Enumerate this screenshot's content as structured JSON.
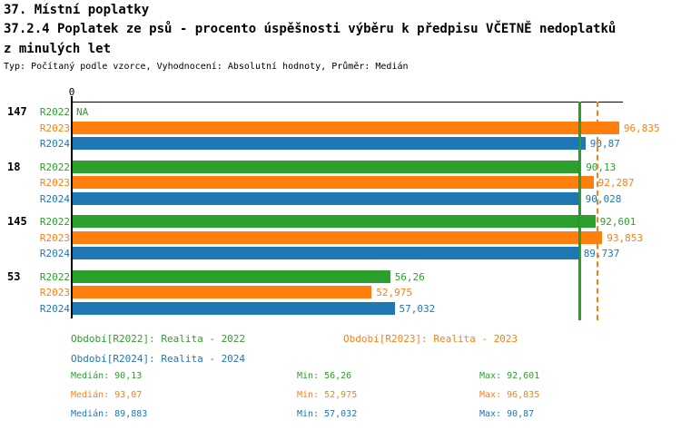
{
  "header": {
    "title_line1": "37. Místní poplatky",
    "title_line2": "37.2.4 Poplatek ze psů - procento úspěšnosti výběru k předpisu VČETNĚ nedoplatků",
    "title_line3": "z minulých let",
    "meta_line": "Typ: Počítaný podle vzorce, Vyhodnocení: Absolutní hodnoty, Průměr: Medián"
  },
  "colors": {
    "series": {
      "R2022": "#2ca02c",
      "R2023": "#ff7f0e",
      "R2024": "#1f77b4"
    },
    "axis": "#000000"
  },
  "chart_data": {
    "type": "bar",
    "orientation": "horizontal",
    "title": "37.2.4 Poplatek ze psů - procento úspěšnosti výběru k předpisu VČETNĚ nedoplatků z minulých let",
    "axis": {
      "origin_label": "0",
      "max": 97.5
    },
    "series_labels": [
      "R2022",
      "R2023",
      "R2024"
    ],
    "groups": [
      {
        "label": "147",
        "bars": [
          {
            "series": "R2022",
            "value": null,
            "label": "NA"
          },
          {
            "series": "R2023",
            "value": 96.835,
            "label": "96,835"
          },
          {
            "series": "R2024",
            "value": 90.87,
            "label": "90,87"
          }
        ]
      },
      {
        "label": "18",
        "bars": [
          {
            "series": "R2022",
            "value": 90.13,
            "label": "90,13"
          },
          {
            "series": "R2023",
            "value": 92.287,
            "label": "92,287"
          },
          {
            "series": "R2024",
            "value": 90.028,
            "label": "90,028"
          }
        ]
      },
      {
        "label": "145",
        "bars": [
          {
            "series": "R2022",
            "value": 92.601,
            "label": "92,601"
          },
          {
            "series": "R2023",
            "value": 93.853,
            "label": "93,853"
          },
          {
            "series": "R2024",
            "value": 89.737,
            "label": "89,737"
          }
        ]
      },
      {
        "label": "53",
        "bars": [
          {
            "series": "R2022",
            "value": 56.26,
            "label": "56,26"
          },
          {
            "series": "R2023",
            "value": 52.975,
            "label": "52,975"
          },
          {
            "series": "R2024",
            "value": 57.032,
            "label": "57,032"
          }
        ]
      }
    ],
    "median_lines": [
      {
        "series": "R2024",
        "value": 89.883,
        "style": "solid"
      },
      {
        "series": "R2022",
        "value": 90.13,
        "style": "solid"
      },
      {
        "series": "R2023",
        "value": 93.07,
        "style": "dashed"
      }
    ]
  },
  "legend": {
    "items": [
      {
        "series": "R2022",
        "label": "Období[R2022]: Realita - 2022"
      },
      {
        "series": "R2023",
        "label": "Období[R2023]: Realita - 2023"
      },
      {
        "series": "R2024",
        "label": "Období[R2024]: Realita - 2024"
      }
    ]
  },
  "stats": {
    "col_labels": [
      "Medián",
      "Min",
      "Max"
    ],
    "rows": [
      {
        "series": "R2022",
        "median": "90,13",
        "min": "56,26",
        "max": "92,601"
      },
      {
        "series": "R2023",
        "median": "93,07",
        "min": "52,975",
        "max": "96,835"
      },
      {
        "series": "R2024",
        "median": "89,883",
        "min": "57,032",
        "max": "90,87"
      }
    ]
  }
}
